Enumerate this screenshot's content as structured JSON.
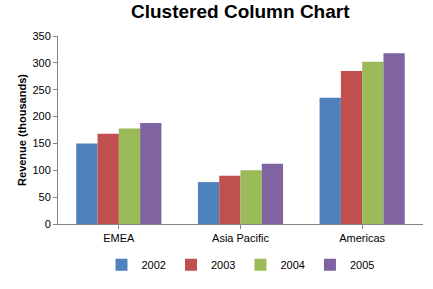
{
  "chart_data": {
    "type": "bar",
    "title": "Clustered Column Chart",
    "ylabel": "Revenue (thousands)",
    "categories": [
      "EMEA",
      "Asia Pacific",
      "Americas"
    ],
    "series": [
      {
        "name": "2002",
        "color": "#4f81bd",
        "values": [
          150,
          78,
          235
        ]
      },
      {
        "name": "2003",
        "color": "#c0504d",
        "values": [
          168,
          90,
          285
        ]
      },
      {
        "name": "2004",
        "color": "#9bbb59",
        "values": [
          178,
          100,
          302
        ]
      },
      {
        "name": "2005",
        "color": "#8064a2",
        "values": [
          188,
          112,
          318
        ]
      }
    ],
    "ylim": [
      0,
      350
    ],
    "yticks": [
      0,
      50,
      100,
      150,
      200,
      250,
      300,
      350
    ],
    "grid": false,
    "legend": "bottom"
  }
}
